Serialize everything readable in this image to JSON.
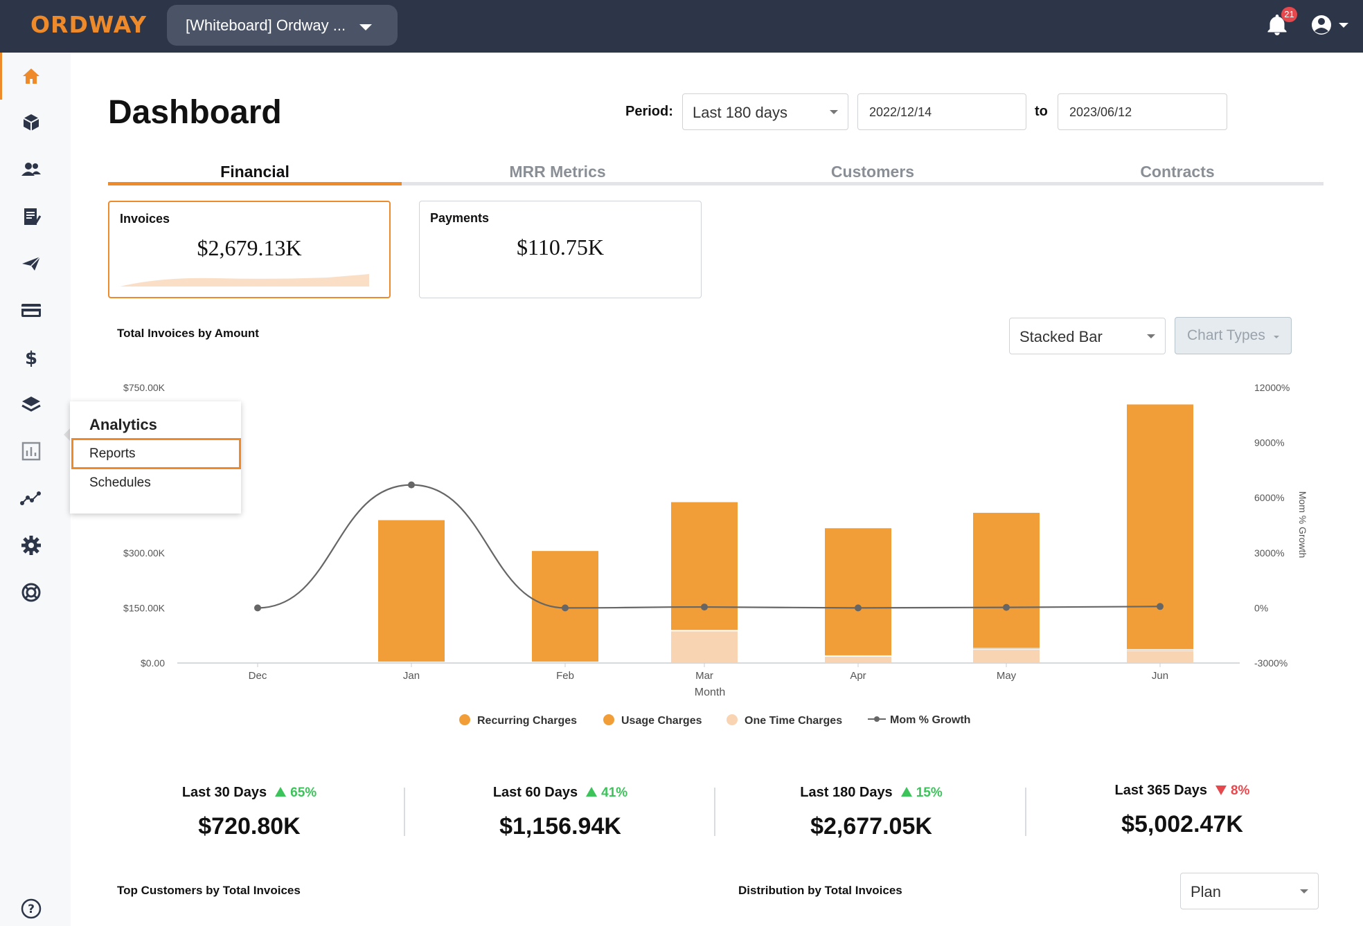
{
  "app": {
    "logo": "ORDWAY",
    "workspace": "[Whiteboard] Ordway ...",
    "notifications_count": "21"
  },
  "sidebar": {
    "icons": [
      "home-icon",
      "box-icon",
      "users-icon",
      "invoice-icon",
      "send-icon",
      "card-icon",
      "dollar-icon",
      "layers-icon",
      "analytics-icon",
      "graph-icon",
      "gear-icon",
      "lifebuoy-icon",
      "help-icon"
    ],
    "active": "home-icon"
  },
  "flyout": {
    "title": "Analytics",
    "items": [
      {
        "label": "Reports",
        "active": true
      },
      {
        "label": "Schedules",
        "active": false
      }
    ]
  },
  "header": {
    "title": "Dashboard",
    "period_label": "Period:",
    "period_value": "Last 180 days",
    "start_date": "2022/12/14",
    "to_label": "to",
    "end_date": "2023/06/12"
  },
  "tabs": [
    {
      "label": "Financial",
      "active": true
    },
    {
      "label": "MRR Metrics",
      "active": false
    },
    {
      "label": "Customers",
      "active": false
    },
    {
      "label": "Contracts",
      "active": false
    }
  ],
  "cards": [
    {
      "title": "Invoices",
      "value": "$2,679.13K",
      "active": true
    },
    {
      "title": "Payments",
      "value": "$110.75K",
      "active": false
    }
  ],
  "chart_section": {
    "title": "Total Invoices by Amount",
    "chart_type_select": "Stacked Bar",
    "chart_types_button": "Chart Types"
  },
  "chart_data": {
    "type": "bar",
    "stacked": true,
    "categories": [
      "Dec",
      "Jan",
      "Feb",
      "Mar",
      "Apr",
      "May",
      "Jun"
    ],
    "xlabel": "Month",
    "ylabel_right": "Mom % Growth",
    "y_left": {
      "ticks": [
        "$0.00",
        "$150.00K",
        "$300.00K",
        "$750.00K"
      ],
      "ylim": [
        0,
        750
      ]
    },
    "y_right": {
      "ticks": [
        "-3000%",
        "0%",
        "3000%",
        "6000%",
        "9000%",
        "12000%"
      ],
      "ylim": [
        -3000,
        12000
      ]
    },
    "series": [
      {
        "name": "Recurring Charges",
        "color": "#f29e38",
        "axis": "left",
        "values": [
          0,
          387,
          303,
          350,
          348,
          370,
          668
        ]
      },
      {
        "name": "Usage Charges",
        "color": "#f29e38",
        "axis": "left",
        "values": [
          0,
          2,
          2,
          2,
          2,
          3,
          3
        ]
      },
      {
        "name": "One Time Charges",
        "color": "#f8d4b3",
        "axis": "left",
        "values": [
          0,
          0,
          0,
          86,
          17,
          36,
          33
        ]
      },
      {
        "name": "Mom % Growth",
        "color": "#666666",
        "axis": "right",
        "type": "line",
        "values": [
          0,
          6700,
          0,
          50,
          0,
          30,
          80
        ]
      }
    ]
  },
  "stats": [
    {
      "label": "Last 30 Days",
      "change": "65%",
      "direction": "up",
      "value": "$720.80K"
    },
    {
      "label": "Last 60 Days",
      "change": "41%",
      "direction": "up",
      "value": "$1,156.94K"
    },
    {
      "label": "Last 180 Days",
      "change": "15%",
      "direction": "up",
      "value": "$2,677.05K"
    },
    {
      "label": "Last 365 Days",
      "change": "8%",
      "direction": "down",
      "value": "$5,002.47K"
    }
  ],
  "bottom": {
    "top_customers_title": "Top Customers by Total Invoices",
    "distribution_title": "Distribution by Total Invoices",
    "distribution_select": "Plan"
  },
  "colors": {
    "accent": "#ef8a2b",
    "topbar": "#2d3648",
    "bar": "#f29e38",
    "bar_light": "#f8d4b3",
    "up": "#3cc35a",
    "down": "#e5484d"
  }
}
